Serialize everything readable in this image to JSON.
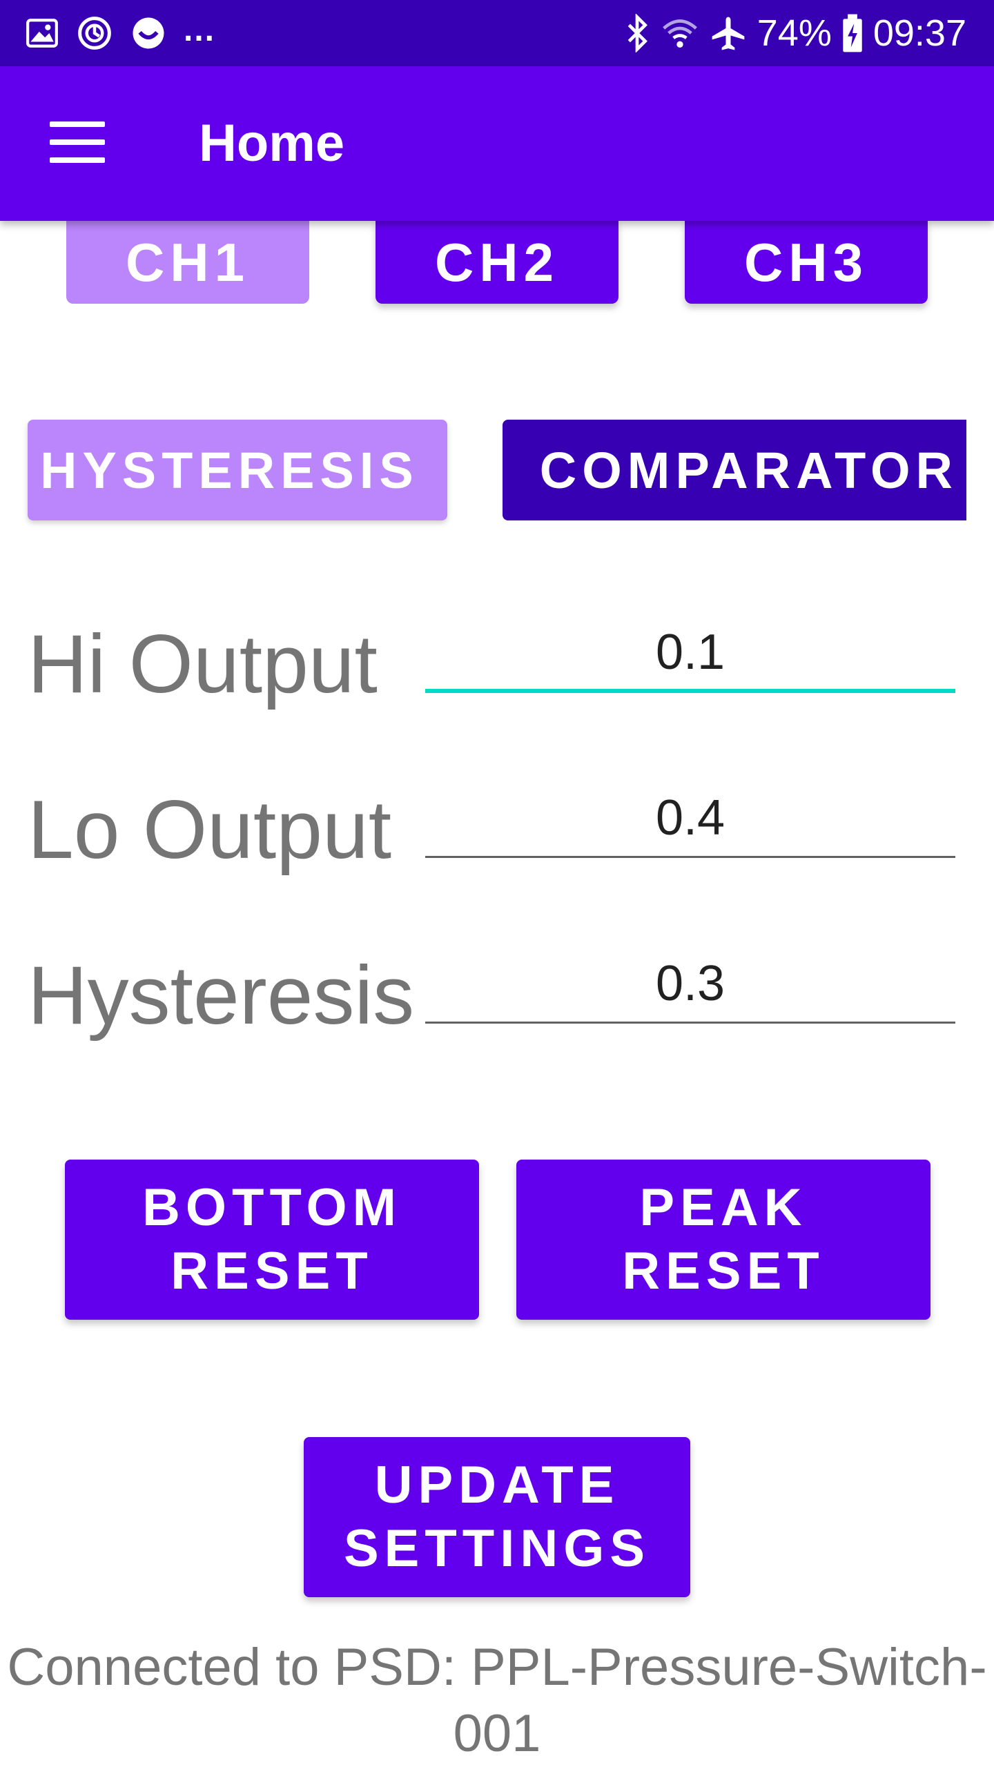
{
  "status_bar": {
    "battery": "74%",
    "time": "09:37",
    "dots": "..."
  },
  "app_bar": {
    "title": "Home"
  },
  "channels": [
    {
      "label": "CH1"
    },
    {
      "label": "CH2"
    },
    {
      "label": "CH3"
    }
  ],
  "modes": [
    {
      "label": "HYSTERESIS"
    },
    {
      "label": "COMPARATOR"
    }
  ],
  "form": {
    "hi_output": {
      "label": "Hi Output",
      "value": "0.1"
    },
    "lo_output": {
      "label": "Lo Output",
      "value": "0.4"
    },
    "hysteresis": {
      "label": "Hysteresis",
      "value": "0.3"
    }
  },
  "buttons": {
    "bottom_reset": "BOTTOM\nRESET",
    "peak_reset": "PEAK\nRESET",
    "update_settings": "UPDATE\nSETTINGS"
  },
  "connection_status": "Connected to PSD: PPL-Pressure-Switch-001",
  "colors": {
    "status_bar": "#3700b3",
    "app_bar": "#6200ee",
    "button_primary": "#6200ee",
    "button_light": "#bb86fc",
    "button_dark": "#3700b3",
    "input_focus": "#03dac5"
  }
}
